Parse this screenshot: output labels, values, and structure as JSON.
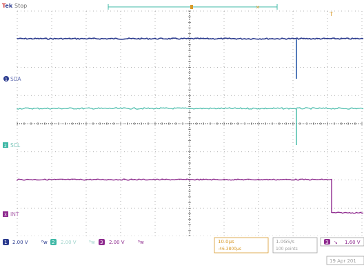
{
  "header": {
    "brand": "Tek",
    "status": "Stop",
    "trigger_marker": "T"
  },
  "channels": [
    {
      "id": "1",
      "name": "SDA",
      "color": "#2a3a8e"
    },
    {
      "id": "2",
      "name": "SCL",
      "color": "#3fb8a6"
    },
    {
      "id": "3",
      "name": "INT",
      "color": "#8e2a8e"
    }
  ],
  "readout": {
    "ch1": {
      "num": "1",
      "scale": "2.00 V"
    },
    "ch2": {
      "num": "2",
      "scale": "2.00 V"
    },
    "ch3": {
      "num": "3",
      "scale": "2.00 V"
    },
    "timebase": "10.0µs",
    "delay": "-46.3800µs",
    "sample_rate": "1.0GS/s",
    "record_length": "100 points",
    "trig_source": "3",
    "trig_slope": "↘",
    "trig_level": "1.60 V",
    "date": "19 Apr 201"
  },
  "colors": {
    "grid": "#8a8a8a",
    "accent": "#d89a2a",
    "brand_t": "#d04040",
    "brand_ek": "#2a3a8e",
    "status": "#8080c8",
    "timeline": "#3fb8a6"
  }
}
